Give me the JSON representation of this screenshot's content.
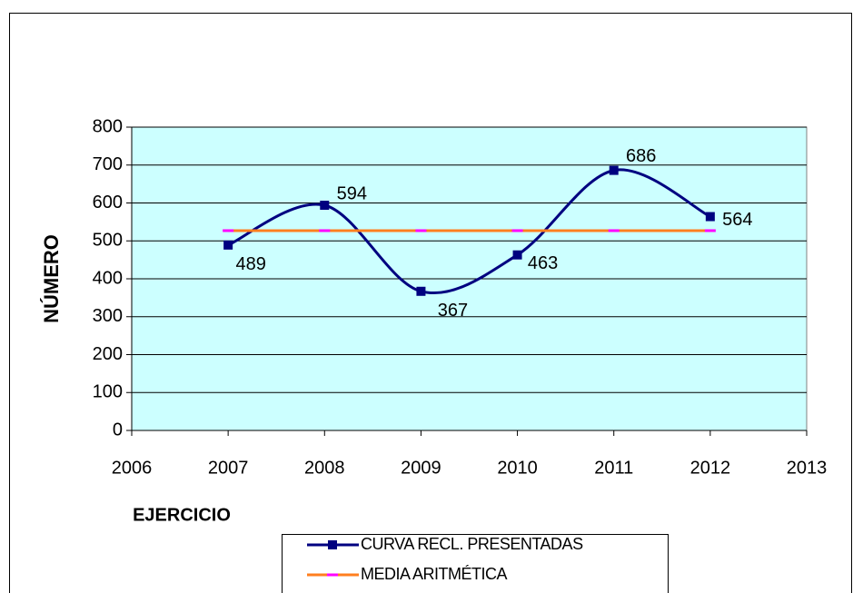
{
  "chart_data": {
    "type": "line",
    "x": [
      2007,
      2008,
      2009,
      2010,
      2011,
      2012
    ],
    "series": [
      {
        "name": "CURVA RECL. PRESENTADAS",
        "color": "#000080",
        "values": [
          489,
          594,
          367,
          463,
          686,
          564
        ],
        "labels": true
      },
      {
        "name": "MEDIA ARITMÉTICA",
        "color": "#ff7f1f",
        "marker_color": "#ff00ff",
        "values": [
          527,
          527,
          527,
          527,
          527,
          527
        ]
      }
    ],
    "xlabel": "EJERCICIO",
    "ylabel": "NÚMERO",
    "xlim": [
      2006,
      2013
    ],
    "xticks": [
      2006,
      2007,
      2008,
      2009,
      2010,
      2011,
      2012,
      2013
    ],
    "ylim": [
      0,
      800
    ],
    "yticks": [
      0,
      100,
      200,
      300,
      400,
      500,
      600,
      700,
      800
    ],
    "grid": true,
    "background": "#ccffff",
    "legend": "bottom"
  }
}
